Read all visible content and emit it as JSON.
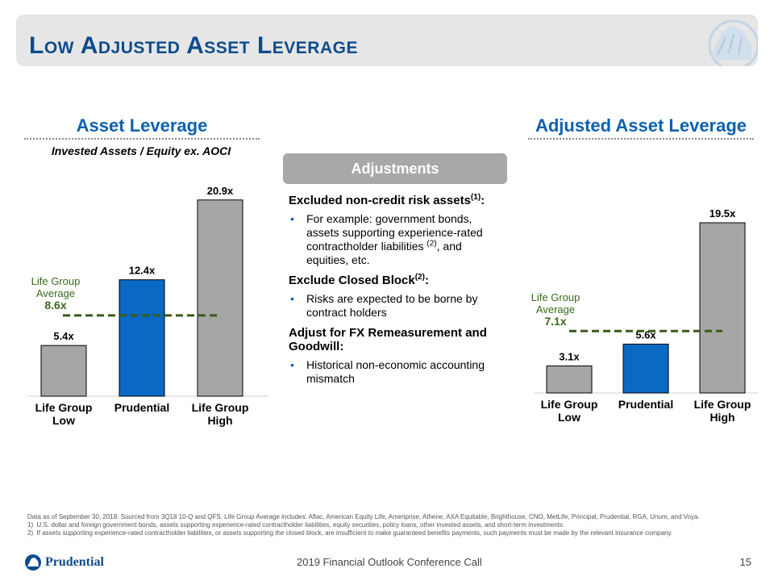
{
  "title": "Low Adjusted Asset Leverage",
  "left": {
    "title": "Asset Leverage",
    "subtitle": "Invested Assets / Equity ex. AOCI",
    "avg_label_line1": "Life Group",
    "avg_label_line2": "Average",
    "avg_value": "8.6x"
  },
  "right": {
    "title": "Adjusted Asset Leverage",
    "avg_label_line1": "Life Group",
    "avg_label_line2": "Average",
    "avg_value": "7.1x"
  },
  "adjustments": {
    "title": "Adjustments",
    "h1": "Excluded non-credit risk assets",
    "h1_sup": "(1)",
    "h1_end": ":",
    "b1_a": "For example: government bonds, assets supporting experience-rated contractholder liabilities ",
    "b1_sup": "(2)",
    "b1_b": ", and equities, etc.",
    "h2": "Exclude Closed Block",
    "h2_sup": "(2)",
    "h2_end": ":",
    "b2": "Risks are expected to be borne by contract holders",
    "h3": "Adjust for FX Remeasurement and Goodwill:",
    "b3": "Historical non-economic accounting mismatch"
  },
  "chart_data": [
    {
      "type": "bar",
      "title": "Asset Leverage",
      "categories": [
        "Life Group Low",
        "Prudential",
        "Life Group High"
      ],
      "values": [
        5.4,
        12.4,
        20.9
      ],
      "labels": [
        "5.4x",
        "12.4x",
        "20.9x"
      ],
      "colors": [
        "#a6a6a6",
        "#0a69c2",
        "#a6a6a6"
      ],
      "average": 8.6,
      "ylim": [
        0,
        22
      ]
    },
    {
      "type": "bar",
      "title": "Adjusted Asset Leverage",
      "categories": [
        "Life Group Low",
        "Prudential",
        "Life Group High"
      ],
      "values": [
        3.1,
        5.6,
        19.5
      ],
      "labels": [
        "3.1x",
        "5.6x",
        "19.5x"
      ],
      "colors": [
        "#a6a6a6",
        "#0a69c2",
        "#a6a6a6"
      ],
      "average": 7.1,
      "ylim": [
        0,
        22
      ]
    }
  ],
  "colors": {
    "title": "#0d4c8c",
    "section": "#0d61b0",
    "average_line": "#3a5a1a",
    "bar_gray": "#a6a6a6",
    "bar_blue": "#0a69c2"
  },
  "footnotes": {
    "main": "Data as of September 30, 2018. Sourced from 3Q18 10-Q and QFS. Life Group Average includes: Aflac, American Equity Life, Ameriprise, Athene, AXA Equitable, Brighthouse, CNO, MetLife, Principal, Prudential, RGA, Unum, and Voya.",
    "n1": "1)  U.S. dollar and foreign government bonds, assets supporting experience-rated contractholder liabilities, equity securities, policy loans, other invested assets, and short-term investments.",
    "n2": "2)  If assets supporting experience-rated contractholder liabilities, or assets supporting the closed block, are insufficient to make guaranteed benefits payments, such payments must be made by the relevant insurance company."
  },
  "footer": {
    "center": "2019 Financial Outlook Conference Call",
    "page": "15",
    "logo_text": "Prudential",
    "logo_icon": "rock-icon"
  }
}
